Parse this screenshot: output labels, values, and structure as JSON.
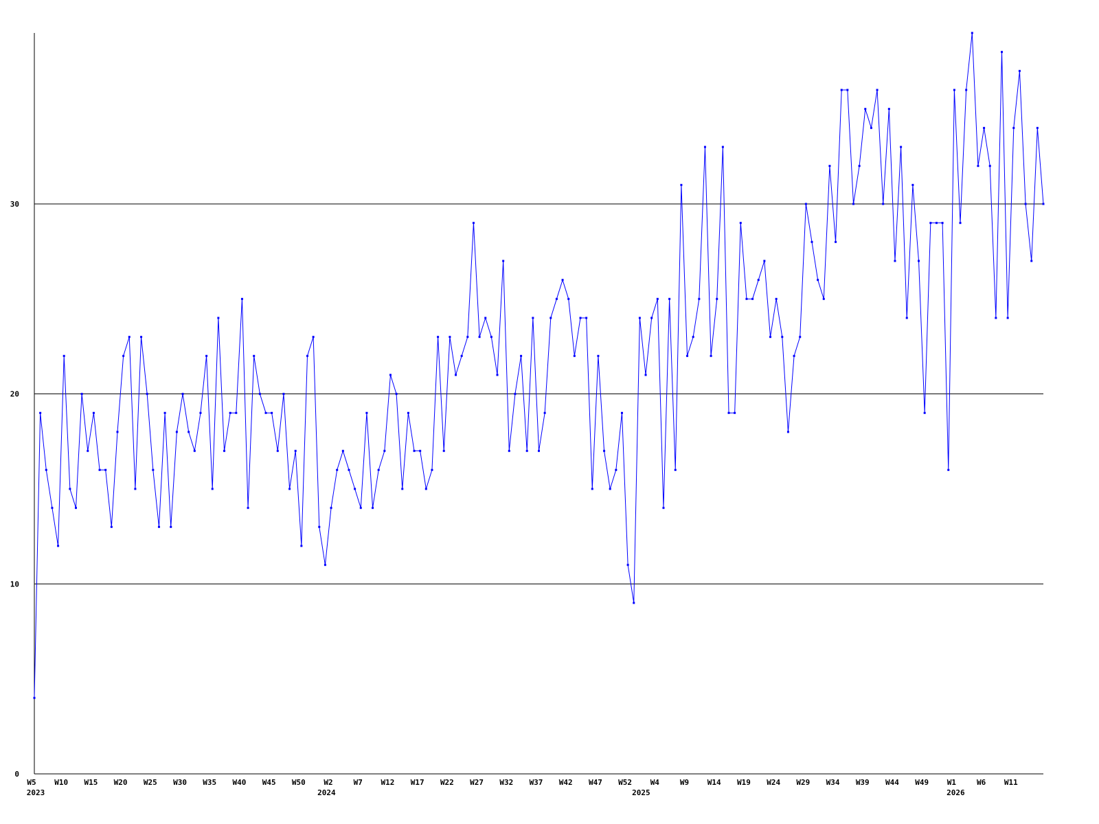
{
  "chart_data": {
    "type": "line",
    "categories": [
      "W5",
      null,
      null,
      null,
      null,
      "W10",
      null,
      null,
      null,
      null,
      "W15",
      null,
      null,
      null,
      null,
      "W20",
      null,
      null,
      null,
      null,
      "W25",
      null,
      null,
      null,
      null,
      "W30",
      null,
      null,
      null,
      null,
      "W35",
      null,
      null,
      null,
      null,
      "W40",
      null,
      null,
      null,
      null,
      "W45",
      null,
      null,
      null,
      null,
      "W50",
      null,
      null,
      null,
      null,
      "W2",
      null,
      null,
      null,
      null,
      "W7",
      null,
      null,
      null,
      null,
      "W12",
      null,
      null,
      null,
      null,
      "W17",
      null,
      null,
      null,
      null,
      "W22",
      null,
      null,
      null,
      null,
      "W27",
      null,
      null,
      null,
      null,
      "W32",
      null,
      null,
      null,
      null,
      "W37",
      null,
      null,
      null,
      null,
      "W42",
      null,
      null,
      null,
      null,
      "W47",
      null,
      null,
      null,
      null,
      "W52",
      null,
      null,
      null,
      null,
      "W4",
      null,
      null,
      null,
      null,
      "W9",
      null,
      null,
      null,
      null,
      "W14",
      null,
      null,
      null,
      null,
      "W19",
      null,
      null,
      null,
      null,
      "W24",
      null,
      null,
      null,
      null,
      "W29",
      null,
      null,
      null,
      null,
      "W34",
      null,
      null,
      null,
      null,
      "W39",
      null,
      null,
      null,
      null,
      "W44",
      null,
      null,
      null,
      null,
      "W49",
      null,
      null,
      null,
      null,
      "W1",
      null,
      null,
      null,
      null,
      "W6",
      null,
      null,
      null,
      null,
      "W11",
      null,
      null,
      null,
      null,
      null
    ],
    "year_labels": [
      {
        "index": 0,
        "label": "2023"
      },
      {
        "index": 49,
        "label": "2024"
      },
      {
        "index": 102,
        "label": "2025"
      },
      {
        "index": 155,
        "label": "2026"
      }
    ],
    "series": [
      {
        "color": "#0000ff",
        "values": [
          4,
          19,
          16,
          14,
          12,
          22,
          15,
          14,
          20,
          17,
          19,
          16,
          16,
          13,
          18,
          22,
          23,
          15,
          23,
          20,
          16,
          13,
          19,
          13,
          18,
          20,
          18,
          17,
          19,
          22,
          15,
          24,
          17,
          19,
          19,
          25,
          14,
          22,
          20,
          19,
          19,
          17,
          20,
          15,
          17,
          12,
          22,
          23,
          13,
          11,
          14,
          16,
          17,
          16,
          15,
          14,
          19,
          14,
          16,
          17,
          21,
          20,
          15,
          19,
          17,
          17,
          15,
          16,
          23,
          17,
          23,
          21,
          22,
          23,
          29,
          23,
          24,
          23,
          21,
          27,
          17,
          20,
          22,
          17,
          24,
          17,
          19,
          24,
          25,
          26,
          25,
          22,
          24,
          24,
          15,
          22,
          17,
          15,
          16,
          19,
          11,
          9,
          24,
          21,
          24,
          25,
          14,
          25,
          16,
          31,
          22,
          23,
          25,
          33,
          22,
          25,
          33,
          19,
          19,
          29,
          25,
          25,
          26,
          27,
          23,
          25,
          23,
          18,
          22,
          23,
          30,
          28,
          26,
          25,
          32,
          28,
          36,
          36,
          30,
          32,
          35,
          34,
          36,
          30,
          35,
          27,
          33,
          24,
          31,
          27,
          19,
          29,
          29,
          29,
          16,
          36,
          29,
          36,
          39,
          32,
          34,
          32,
          24,
          38,
          24,
          34,
          37,
          30,
          27,
          34,
          30
        ]
      }
    ],
    "ylim": [
      0,
      39
    ],
    "yticks": [
      0,
      10,
      20,
      30
    ],
    "grid": true
  }
}
